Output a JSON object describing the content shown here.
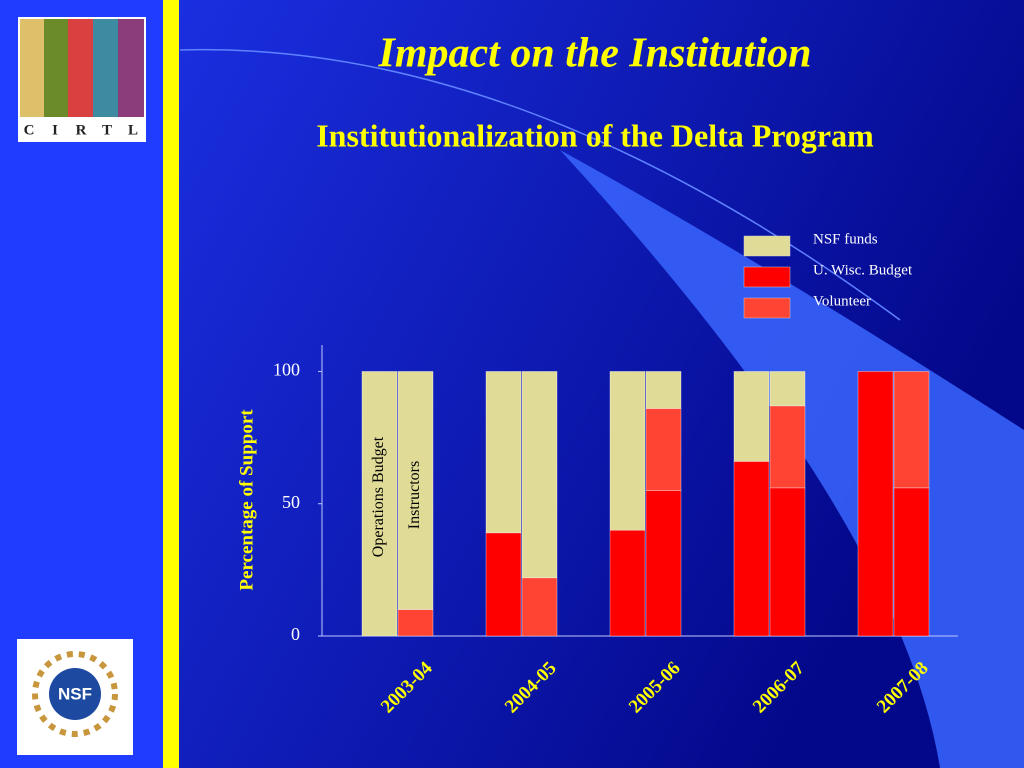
{
  "slide": {
    "title": "Impact on the Institution"
  },
  "logos": {
    "cirtl": [
      "C",
      "I",
      "R",
      "T",
      "L"
    ],
    "nsf": "NSF"
  },
  "chart_data": {
    "type": "grouped-stacked-bar",
    "title": "Institutionalization of the Delta Program",
    "y_label": "Percentage of Support",
    "categories": [
      "2003-04",
      "2004-05",
      "2005-06",
      "2006-07",
      "2007-08"
    ],
    "bar_labels": [
      "Operations Budget",
      "Instructors"
    ],
    "series": [
      {
        "name": "NSF funds",
        "color": "#e0dc98",
        "values": [
          [
            100,
            90
          ],
          [
            61,
            78
          ],
          [
            60,
            14
          ],
          [
            34,
            13
          ],
          [
            0,
            0
          ]
        ]
      },
      {
        "name": "U. Wisc. Budget",
        "color": "#ff0000",
        "values": [
          [
            0,
            0
          ],
          [
            39,
            0
          ],
          [
            40,
            55
          ],
          [
            66,
            56
          ],
          [
            100,
            56
          ]
        ]
      },
      {
        "name": "Volunteer",
        "color": "#ff4433",
        "values": [
          [
            0,
            10
          ],
          [
            0,
            22
          ],
          [
            0,
            31
          ],
          [
            0,
            31
          ],
          [
            0,
            44
          ]
        ]
      }
    ],
    "ylim": [
      0,
      110
    ],
    "yticks": [
      0,
      50,
      100
    ],
    "grid": false
  }
}
